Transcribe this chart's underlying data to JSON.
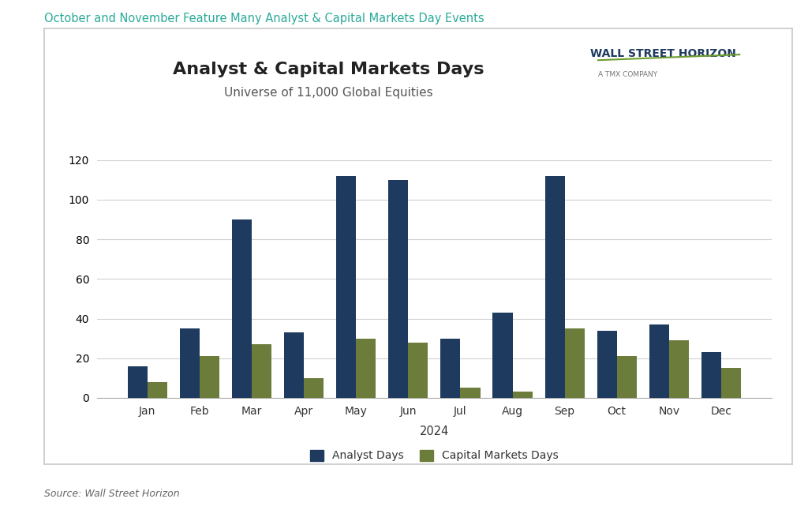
{
  "title": "Analyst & Capital Markets Days",
  "subtitle": "Universe of 11,000 Global Equities",
  "super_title": "October and November Feature Many Analyst & Capital Markets Day Events",
  "xlabel": "2024",
  "source_text": "Source: Wall Street Horizon",
  "categories": [
    "Jan",
    "Feb",
    "Mar",
    "Apr",
    "May",
    "Jun",
    "Jul",
    "Aug",
    "Sep",
    "Oct",
    "Nov",
    "Dec"
  ],
  "analyst_days": [
    16,
    35,
    90,
    33,
    112,
    110,
    30,
    43,
    112,
    34,
    37,
    23
  ],
  "capital_markets_days": [
    8,
    21,
    27,
    10,
    30,
    28,
    5,
    3,
    35,
    21,
    29,
    15
  ],
  "analyst_color": "#1e3a5f",
  "capital_color": "#6b7c3b",
  "bar_width": 0.38,
  "ylim": [
    0,
    130
  ],
  "yticks": [
    0,
    20,
    40,
    60,
    80,
    100,
    120
  ],
  "legend_analyst": "Analyst Days",
  "legend_capital": "Capital Markets Days",
  "chart_bg": "#ffffff",
  "outer_bg": "#ffffff",
  "grid_color": "#d0d0d0",
  "title_fontsize": 16,
  "subtitle_fontsize": 11,
  "super_title_color": "#2aaa99",
  "super_title_fontsize": 10.5,
  "wsh_text1": "WALL STREET HORIZON",
  "wsh_text2": "A TMX COMPANY",
  "wsh_color1_dark": "#1e3a5f",
  "wsh_color1_green": "#6b9c2e",
  "wsh_color2": "#777777"
}
